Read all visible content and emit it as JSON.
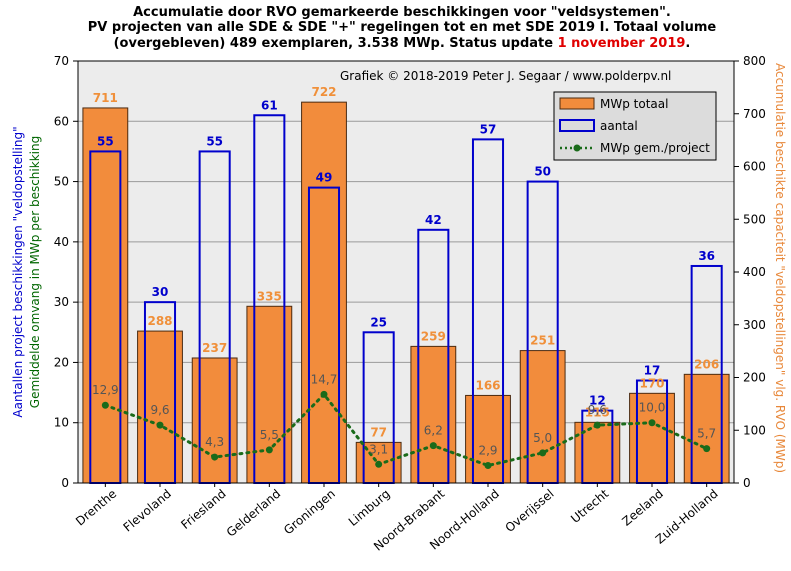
{
  "title": {
    "line1": "Accumulatie door RVO gemarkeerde beschikkingen voor \"veldsystemen\".",
    "line2": "PV projecten van alle SDE & SDE \"+\" regelingen tot en met SDE 2019 I. Totaal volume",
    "line3_prefix": "(overgebleven) 489 exemplaren, 3.538 MWp. Status update ",
    "line3_date": "1 november 2019",
    "line3_suffix": "."
  },
  "credit": "Grafiek  © 2018-2019 Peter J. Segaar / www.polderpv.nl",
  "axes": {
    "y_left_label_line1": "Aantallen project beschikkingen \"veldopstelling\"",
    "y_left_label_line2": "Gemiddelde  omvang in MWp per beschikking",
    "y_right_label": "Accumulatie beschikte capaciteit \"veldopstellingen\"  vlg. RVO (MWp)",
    "y_left_ticks": [
      "0",
      "10",
      "20",
      "30",
      "40",
      "50",
      "60",
      "70"
    ],
    "y_right_ticks": [
      "0",
      "100",
      "200",
      "300",
      "400",
      "500",
      "600",
      "700",
      "800"
    ]
  },
  "legend": {
    "mwp_total": "MWp totaal",
    "count": "aantal",
    "avg": "MWp gem./project"
  },
  "colors": {
    "bar_fill": "#f28c3c",
    "bar_stroke": "#4a2a10",
    "count_stroke": "#0000cc",
    "avg_line": "#1a6b1a",
    "plot_bg": "#ececec",
    "label_orange": "#f0903a",
    "label_blue": "#0000cc"
  },
  "chart_data": {
    "type": "bar",
    "categories": [
      "Drenthe",
      "Flevoland",
      "Friesland",
      "Gelderland",
      "Groningen",
      "Limburg",
      "Noord-Brabant",
      "Noord-Holland",
      "Overijssel",
      "Utrecht",
      "Zeeland",
      "Zuid-Holland"
    ],
    "series": [
      {
        "name": "MWp totaal",
        "axis": "right",
        "values": [
          711,
          288,
          237,
          335,
          722,
          77,
          259,
          166,
          251,
          115,
          170,
          206
        ]
      },
      {
        "name": "aantal",
        "axis": "left",
        "values": [
          55,
          30,
          55,
          61,
          49,
          25,
          42,
          57,
          50,
          12,
          17,
          36
        ]
      },
      {
        "name": "MWp gem./project",
        "axis": "left",
        "values": [
          12.9,
          9.6,
          4.3,
          5.5,
          14.7,
          3.1,
          6.2,
          2.9,
          5.0,
          9.6,
          10.0,
          5.7
        ]
      }
    ],
    "avg_labels": [
      "12,9",
      "9,6",
      "4,3",
      "5,5",
      "14,7",
      "3,1",
      "6,2",
      "2,9",
      "5,0",
      "9,6",
      "10,0",
      "5,7"
    ],
    "ylim_left": [
      0,
      70
    ],
    "ylim_right": [
      0,
      800
    ],
    "grid": true,
    "legend_position": "top-right"
  }
}
